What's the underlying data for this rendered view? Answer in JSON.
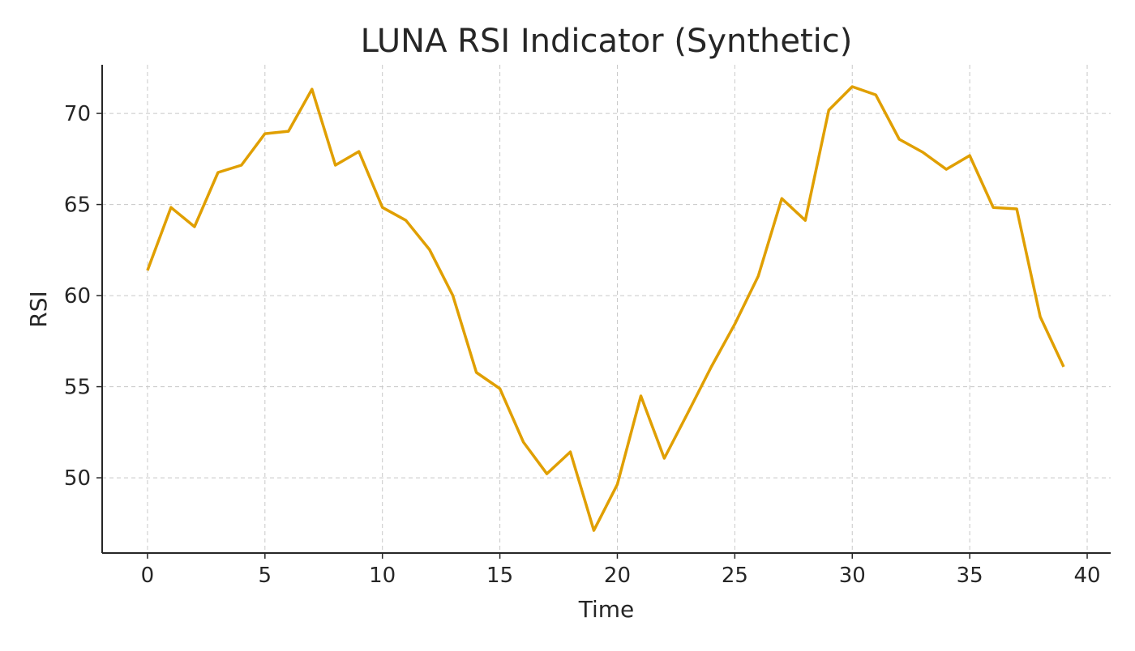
{
  "chart_data": {
    "type": "line",
    "title": "LUNA RSI Indicator (Synthetic)",
    "xlabel": "Time",
    "ylabel": "RSI",
    "xlim": [
      -1.93,
      41.0
    ],
    "ylim": [
      45.87,
      72.67
    ],
    "xticks": [
      0,
      5,
      10,
      15,
      20,
      25,
      30,
      35,
      40
    ],
    "yticks": [
      50,
      55,
      60,
      65,
      70
    ],
    "grid": true,
    "series": [
      {
        "name": "RSI",
        "color": "#E09F00",
        "x": [
          0,
          1,
          2,
          3,
          4,
          5,
          6,
          7,
          8,
          9,
          10,
          11,
          12,
          13,
          14,
          15,
          16,
          17,
          18,
          19,
          20,
          21,
          22,
          23,
          24,
          25,
          26,
          27,
          28,
          29,
          30,
          31,
          32,
          33,
          34,
          35,
          36,
          37,
          38,
          39
        ],
        "values": [
          61.38,
          64.84,
          63.78,
          66.76,
          67.16,
          68.89,
          69.02,
          71.33,
          67.16,
          67.91,
          64.84,
          64.13,
          62.53,
          60.0,
          55.78,
          54.89,
          51.96,
          50.22,
          51.42,
          47.11,
          49.64,
          54.49,
          51.07,
          53.56,
          56.09,
          58.44,
          61.07,
          65.33,
          64.13,
          70.18,
          71.47,
          71.02,
          68.58,
          67.87,
          66.93,
          67.69,
          64.84,
          64.76,
          58.84,
          56.09
        ]
      }
    ]
  }
}
